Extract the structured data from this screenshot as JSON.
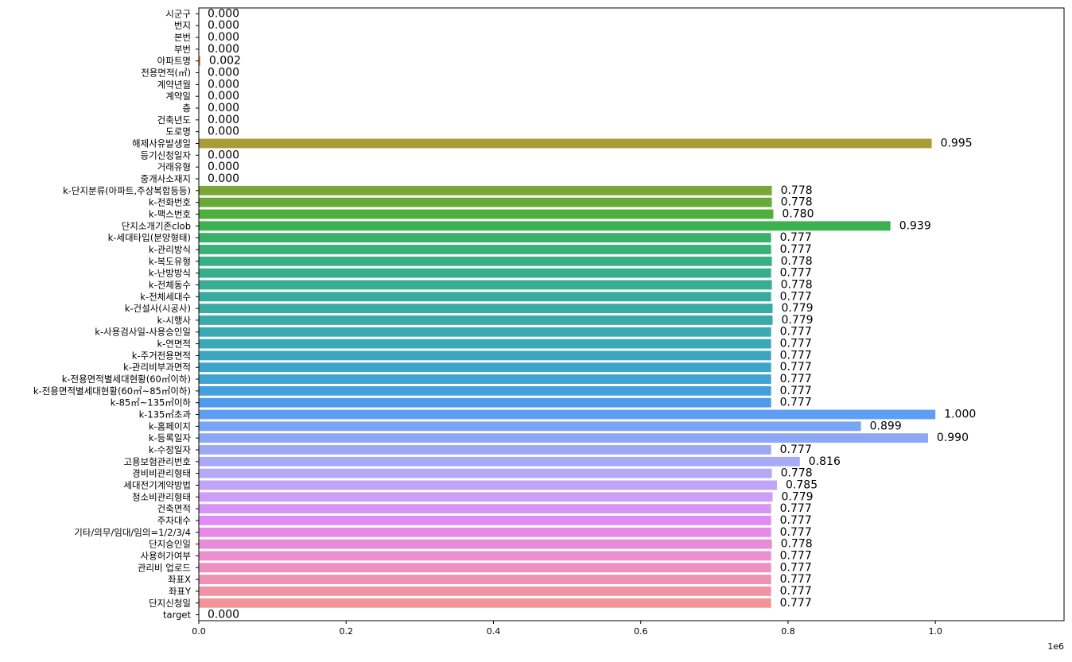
{
  "chart_data": {
    "type": "bar",
    "orientation": "horizontal",
    "title": "",
    "xlabel": "",
    "ylabel": "",
    "x_offset_label": "1e6",
    "xlim": [
      0,
      1.1747
    ],
    "x_ticks": [
      "0.0",
      "0.2",
      "0.4",
      "0.6",
      "0.8",
      "1.0"
    ],
    "grid": false,
    "legend": "none",
    "categories": [
      "시군구",
      "번지",
      "본번",
      "부번",
      "아파트명",
      "전용면적(㎡)",
      "계약년월",
      "계약일",
      "층",
      "건축년도",
      "도로명",
      "해제사유발생일",
      "등기신청일자",
      "거래유형",
      "중개사소재지",
      "k-단지분류(아파트,주상복합등등)",
      "k-전화번호",
      "k-팩스번호",
      "단지소개기존clob",
      "k-세대타입(분양형태)",
      "k-관리방식",
      "k-복도유형",
      "k-난방방식",
      "k-전체동수",
      "k-전체세대수",
      "k-건설사(시공사)",
      "k-시행사",
      "k-사용검사일-사용승인일",
      "k-연면적",
      "k-주거전용면적",
      "k-관리비부과면적",
      "k-전용면적별세대현황(60㎡이하)",
      "k-전용면적별세대현황(60㎡~85㎡이하)",
      "k-85㎡~135㎡이하",
      "k-135㎡초과",
      "k-홈페이지",
      "k-등록일자",
      "k-수정일자",
      "고용보험관리번호",
      "경비비관리형태",
      "세대전기계약방법",
      "청소비관리형태",
      "건축면적",
      "주차대수",
      "기타/의무/임대/임의=1/2/3/4",
      "단지승인일",
      "사용허가여부",
      "관리비 업로드",
      "좌표X",
      "좌표Y",
      "단지신청일",
      "target"
    ],
    "values": [
      0.0,
      0.0,
      0.0,
      0.0,
      0.002,
      0.0,
      0.0,
      0.0,
      0.0,
      0.0,
      0.0,
      0.995,
      0.0,
      0.0,
      0.0,
      0.778,
      0.778,
      0.78,
      0.939,
      0.777,
      0.777,
      0.778,
      0.777,
      0.778,
      0.777,
      0.779,
      0.779,
      0.777,
      0.777,
      0.777,
      0.777,
      0.777,
      0.777,
      0.777,
      1.0,
      0.899,
      0.99,
      0.777,
      0.816,
      0.778,
      0.785,
      0.779,
      0.777,
      0.777,
      0.777,
      0.778,
      0.777,
      0.777,
      0.777,
      0.777,
      0.777,
      0.0
    ],
    "value_labels": [
      "0.000",
      "0.000",
      "0.000",
      "0.000",
      "0.002",
      "0.000",
      "0.000",
      "0.000",
      "0.000",
      "0.000",
      "0.000",
      "0.995",
      "0.000",
      "0.000",
      "0.000",
      "0.778",
      "0.778",
      "0.780",
      "0.939",
      "0.777",
      "0.777",
      "0.778",
      "0.777",
      "0.778",
      "0.777",
      "0.779",
      "0.779",
      "0.777",
      "0.777",
      "0.777",
      "0.777",
      "0.777",
      "0.777",
      "0.777",
      "1.000",
      "0.899",
      "0.990",
      "0.777",
      "0.816",
      "0.778",
      "0.785",
      "0.779",
      "0.777",
      "0.777",
      "0.777",
      "0.778",
      "0.777",
      "0.777",
      "0.777",
      "0.777",
      "0.777",
      "0.000"
    ],
    "colors": [
      "#f77189",
      "#f7727e",
      "#f7746f",
      "#f7765e",
      "#f57b45",
      "#e9823f",
      "#dc883c",
      "#d18d3a",
      "#c6913a",
      "#bc9539",
      "#b39838",
      "#a99b38",
      "#9f9e38",
      "#94a138",
      "#88a438",
      "#79a838",
      "#66ab39",
      "#4cb03b",
      "#3bb24f",
      "#3ab169",
      "#39b079",
      "#39af84",
      "#38ae8d",
      "#38ad95",
      "#38ac9c",
      "#39aba3",
      "#39aaaa",
      "#3aa9b1",
      "#3ba8b8",
      "#3ca6bf",
      "#3ea4c8",
      "#40a2d1",
      "#439fdd",
      "#509bee",
      "#5e9ff5",
      "#7aa4f5",
      "#8ca7f5",
      "#9ba9f5",
      "#a9aaf5",
      "#b5a8f5",
      "#c0a4f5",
      "#cc9ef5",
      "#d796f5",
      "#e38bf5",
      "#e58ae7",
      "#e88cd9",
      "#ea8ecc",
      "#ec90bf",
      "#ee92b2",
      "#f093a5",
      "#f29597",
      "#f77189"
    ]
  }
}
